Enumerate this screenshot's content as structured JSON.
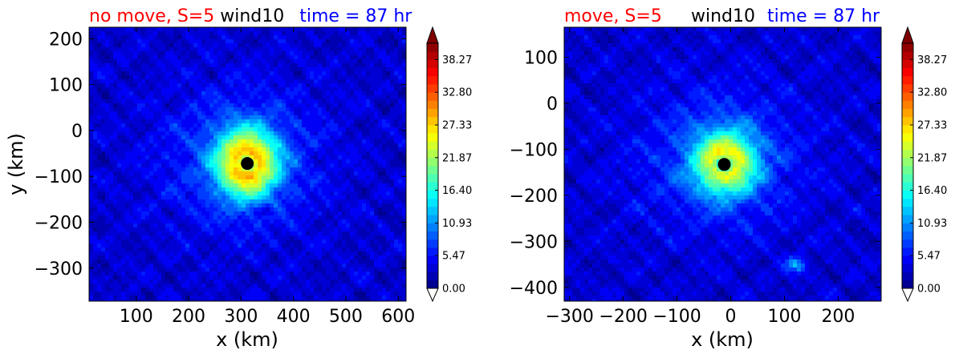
{
  "chart_data": [
    {
      "type": "heatmap",
      "title_parts": [
        {
          "text": "no move, S=5",
          "color": "#ff0000"
        },
        {
          "text": "wind10",
          "color": "#000000"
        },
        {
          "text": "time = 87 hr",
          "color": "#0000ff"
        }
      ],
      "xlabel": "x (km)",
      "ylabel": "y (km)",
      "xlim": [
        10,
        615
      ],
      "ylim": [
        -372,
        225
      ],
      "xticks": [
        100,
        200,
        300,
        400,
        500,
        600
      ],
      "yticks": [
        200,
        100,
        0,
        -100,
        -200,
        -300
      ],
      "xtick_labels": [
        "100",
        "200",
        "300",
        "400",
        "500",
        "600"
      ],
      "ytick_labels": [
        "200",
        "100",
        "0",
        "−100",
        "−200",
        "−300"
      ],
      "storm_center": {
        "x": 312,
        "y": -72
      },
      "features": [
        {
          "x": 312,
          "y": -72,
          "peak": 26,
          "sx": 55,
          "sy": 70
        },
        {
          "x": 300,
          "y": -60,
          "peak": 5,
          "sx": 150,
          "sy": 150
        },
        {
          "x": 350,
          "y": -175,
          "peak": -4,
          "sx": 15,
          "sy": 12
        }
      ]
    },
    {
      "type": "heatmap",
      "title_parts": [
        {
          "text": "move, S=5",
          "color": "#ff0000"
        },
        {
          "text": "wind10",
          "color": "#000000"
        },
        {
          "text": "time = 87 hr",
          "color": "#0000ff"
        }
      ],
      "xlabel": "x (km)",
      "ylabel": "",
      "xlim": [
        -310,
        280
      ],
      "ylim": [
        -430,
        165
      ],
      "xticks": [
        -300,
        -200,
        -100,
        0,
        100,
        200
      ],
      "yticks": [
        100,
        0,
        -100,
        -200,
        -300,
        -400
      ],
      "xtick_labels": [
        "−300",
        "−200",
        "−100",
        "0",
        "100",
        "200"
      ],
      "ytick_labels": [
        "100",
        "0",
        "−100",
        "−200",
        "−300",
        "−400"
      ],
      "storm_center": {
        "x": -12,
        "y": -133
      },
      "features": [
        {
          "x": -10,
          "y": -130,
          "peak": 22,
          "sx": 55,
          "sy": 65
        },
        {
          "x": -20,
          "y": -120,
          "peak": 5,
          "sx": 150,
          "sy": 150
        },
        {
          "x": 122,
          "y": -352,
          "peak": 8,
          "sx": 18,
          "sy": 16
        }
      ]
    }
  ],
  "colorbar": {
    "tick_labels": [
      "38.27",
      "32.80",
      "27.33",
      "21.87",
      "16.40",
      "10.93",
      "5.47",
      "0.00"
    ],
    "tick_values": [
      38.27,
      32.8,
      27.33,
      21.87,
      16.4,
      10.93,
      5.47,
      0.0
    ],
    "vmin": 0,
    "vmax": 41,
    "levels": 30,
    "colormap": "jet",
    "extend": "both",
    "under_color": "#ffffff",
    "over_color": "#7f0000"
  }
}
